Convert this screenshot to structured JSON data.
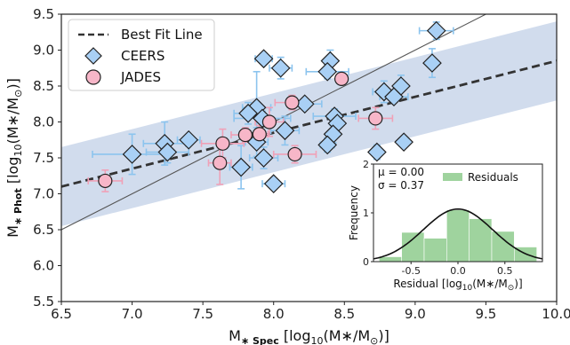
{
  "chart_data": [
    {
      "type": "scatter",
      "xlabel": "M<sub>*Spec</sub> [log10(M*/M⊙)]",
      "ylabel": "M<sub>*Phot</sub> [log10(M*/M⊙)]",
      "xlabel_main": "M",
      "xlabel_sub": "∗ Spec",
      "xlabel_rest": " [log",
      "xlabel_sub2": "10",
      "xlabel_tail": "(M∗/M",
      "xlabel_sun": "⊙",
      "xlabel_end": ")]",
      "ylabel_main": "M",
      "ylabel_sub": "∗ Phot",
      "ylabel_rest": " [log",
      "ylabel_sub2": "10",
      "ylabel_tail": "(M∗/M",
      "ylabel_sun": "⊙",
      "ylabel_end": ")]",
      "xlim": [
        6.5,
        10.0
      ],
      "ylim": [
        5.5,
        9.5
      ],
      "xticks": [
        "6.5",
        "7.0",
        "7.5",
        "8.0",
        "8.5",
        "9.0",
        "9.5",
        "10.0"
      ],
      "yticks": [
        "5.5",
        "6.0",
        "6.5",
        "7.0",
        "7.5",
        "8.0",
        "8.5",
        "9.0",
        "9.5"
      ],
      "legend_position": "top-left",
      "best_fit": {
        "name": "Best Fit Line",
        "slope": 0.5,
        "intercept": 3.85,
        "band_halfwidth": 0.55
      },
      "one_to_one": {
        "slope": 1.0,
        "intercept": 0.0
      },
      "series": [
        {
          "name": "CEERS",
          "marker": "diamond",
          "color": "#a9d0f5",
          "errcolor": "#8cc4ee",
          "points": [
            {
              "x": 9.15,
              "y": 9.27,
              "ex": 0.12,
              "ey": 0.12
            },
            {
              "x": 9.12,
              "y": 8.82,
              "ex": 0.0,
              "ey": 0.2
            },
            {
              "x": 8.4,
              "y": 8.85,
              "ex": 0.0,
              "ey": 0.15
            },
            {
              "x": 8.38,
              "y": 8.7,
              "ex": 0.15,
              "ey": 0.1
            },
            {
              "x": 8.05,
              "y": 8.75,
              "ex": 0.08,
              "ey": 0.15
            },
            {
              "x": 7.93,
              "y": 8.88,
              "ex": 0.06,
              "ey": 0.0
            },
            {
              "x": 8.9,
              "y": 8.5,
              "ex": 0.0,
              "ey": 0.15
            },
            {
              "x": 8.78,
              "y": 8.42,
              "ex": 0.08,
              "ey": 0.15
            },
            {
              "x": 8.85,
              "y": 8.35,
              "ex": 0.1,
              "ey": 0.0
            },
            {
              "x": 8.22,
              "y": 8.25,
              "ex": 0.12,
              "ey": 0.0
            },
            {
              "x": 7.88,
              "y": 8.2,
              "ex": 0.1,
              "ey": 0.5
            },
            {
              "x": 7.82,
              "y": 8.12,
              "ex": 0.1,
              "ey": 0.15
            },
            {
              "x": 7.92,
              "y": 8.05,
              "ex": 0.2,
              "ey": 0.1
            },
            {
              "x": 8.43,
              "y": 8.08,
              "ex": 0.15,
              "ey": 0.1
            },
            {
              "x": 8.45,
              "y": 7.98,
              "ex": 0.0,
              "ey": 0.15
            },
            {
              "x": 8.08,
              "y": 7.88,
              "ex": 0.1,
              "ey": 0.2
            },
            {
              "x": 8.42,
              "y": 7.83,
              "ex": 0.0,
              "ey": 0.12
            },
            {
              "x": 7.4,
              "y": 7.75,
              "ex": 0.08,
              "ey": 0.0
            },
            {
              "x": 7.23,
              "y": 7.7,
              "ex": 0.15,
              "ey": 0.3
            },
            {
              "x": 7.88,
              "y": 7.72,
              "ex": 0.08,
              "ey": 0.2
            },
            {
              "x": 8.38,
              "y": 7.68,
              "ex": 0.05,
              "ey": 0.1
            },
            {
              "x": 8.92,
              "y": 7.72,
              "ex": 0.0,
              "ey": 0.0
            },
            {
              "x": 7.0,
              "y": 7.55,
              "ex": 0.28,
              "ey": 0.28
            },
            {
              "x": 7.25,
              "y": 7.58,
              "ex": 0.15,
              "ey": 0.15
            },
            {
              "x": 7.93,
              "y": 7.5,
              "ex": 0.1,
              "ey": 0.15
            },
            {
              "x": 8.73,
              "y": 7.58,
              "ex": 0.0,
              "ey": 0.1
            },
            {
              "x": 7.77,
              "y": 7.37,
              "ex": 0.08,
              "ey": 0.3
            },
            {
              "x": 8.0,
              "y": 7.14,
              "ex": 0.08,
              "ey": 0.0
            }
          ]
        },
        {
          "name": "JADES",
          "marker": "circle",
          "color": "#f7b6c8",
          "errcolor": "#f0a1b7",
          "points": [
            {
              "x": 8.48,
              "y": 8.6,
              "ex": 0.0,
              "ey": 0.0
            },
            {
              "x": 8.13,
              "y": 8.27,
              "ex": 0.12,
              "ey": 0.1
            },
            {
              "x": 8.72,
              "y": 8.05,
              "ex": 0.12,
              "ey": 0.15
            },
            {
              "x": 7.97,
              "y": 8.0,
              "ex": 0.1,
              "ey": 0.2
            },
            {
              "x": 7.8,
              "y": 7.82,
              "ex": 0.1,
              "ey": 0.1
            },
            {
              "x": 7.9,
              "y": 7.83,
              "ex": 0.06,
              "ey": 0.12
            },
            {
              "x": 7.64,
              "y": 7.7,
              "ex": 0.15,
              "ey": 0.2
            },
            {
              "x": 8.15,
              "y": 7.55,
              "ex": 0.15,
              "ey": 0.12
            },
            {
              "x": 7.62,
              "y": 7.43,
              "ex": 0.08,
              "ey": 0.3
            },
            {
              "x": 6.81,
              "y": 7.18,
              "ex": 0.12,
              "ey": 0.15
            }
          ]
        }
      ]
    },
    {
      "type": "bar",
      "title": "Residuals",
      "xlabel_main": "Residual [log",
      "xlabel_sub": "10",
      "xlabel_tail": "(M∗/M",
      "xlabel_sun": "⊙",
      "xlabel_end": ")]",
      "ylabel": "Frequency",
      "mu_text": "μ = 0.00",
      "sigma_text": "σ = 0.37",
      "mu": 0.0,
      "sigma": 0.37,
      "bin_edges": [
        -0.84,
        -0.6,
        -0.36,
        -0.12,
        0.12,
        0.36,
        0.6,
        0.84
      ],
      "values": [
        0.1,
        0.6,
        0.48,
        1.06,
        0.88,
        0.62,
        0.3
      ],
      "xlim": [
        -0.9,
        0.9
      ],
      "ylim": [
        0,
        2
      ],
      "xticks": [
        "-0.5",
        "0.0",
        "0.5"
      ],
      "yticks": [
        "0",
        "1",
        "2"
      ],
      "legend_label": "Residuals",
      "bar_color": "#9fd39e"
    }
  ]
}
